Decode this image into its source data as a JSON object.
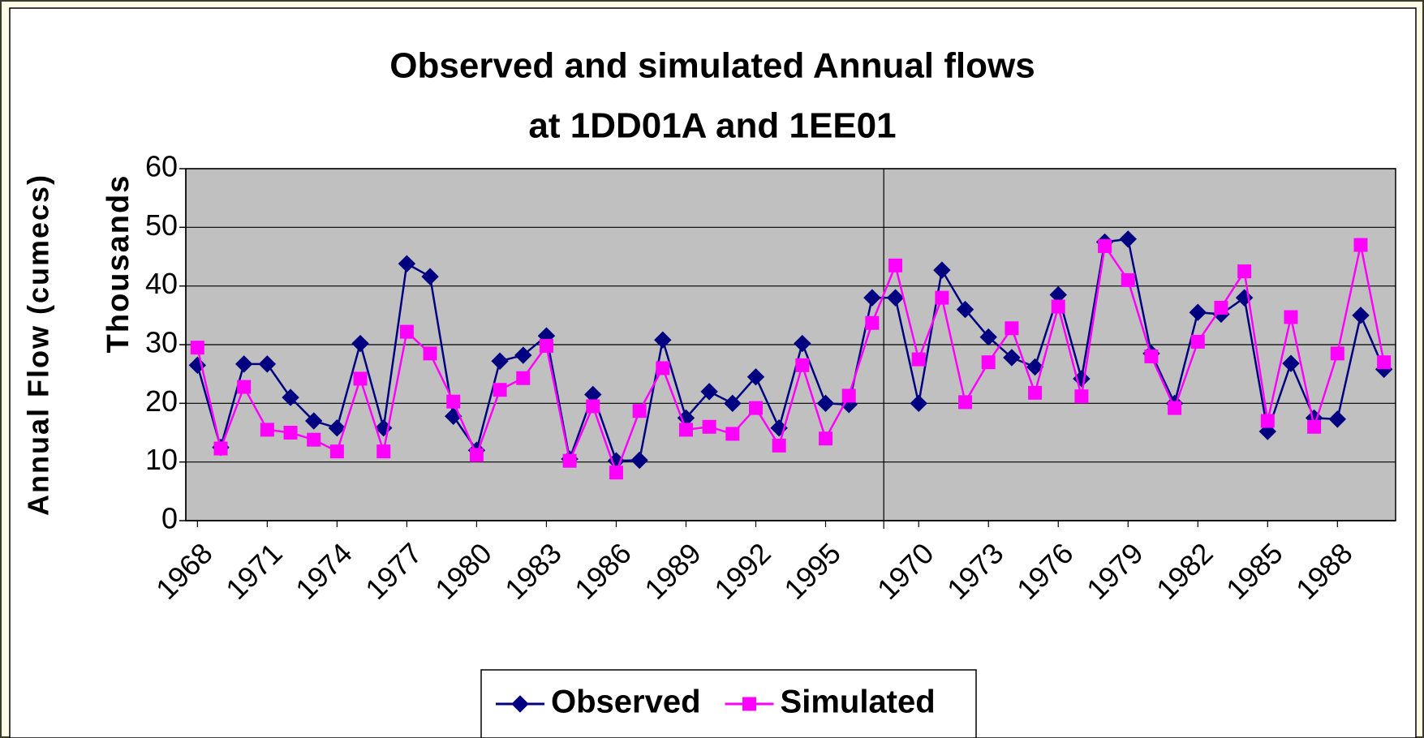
{
  "chart_data": {
    "type": "line",
    "title": [
      "Observed and simulated Annual flows",
      "at 1DD01A and 1EE01"
    ],
    "y_label": "Annual Flow (cumecs)",
    "y_unit_label": "Thousands",
    "categories": [
      "1968",
      null,
      null,
      "1971",
      null,
      null,
      "1974",
      null,
      null,
      "1977",
      null,
      null,
      "1980",
      null,
      null,
      "1983",
      null,
      null,
      "1986",
      null,
      null,
      "1989",
      null,
      null,
      "1992",
      null,
      null,
      "1995",
      null,
      null,
      null,
      "1970",
      null,
      null,
      "1973",
      null,
      null,
      "1976",
      null,
      null,
      "1979",
      null,
      null,
      "1982",
      null,
      null,
      "1985",
      null,
      null,
      "1988",
      null,
      null
    ],
    "series": [
      {
        "name": "Observed",
        "color": "#000080",
        "marker": "diamond",
        "values": [
          26.5,
          12.5,
          26.7,
          26.7,
          21,
          17,
          15.8,
          30.2,
          15.8,
          43.8,
          41.6,
          17.8,
          12,
          27.2,
          28.2,
          31.5,
          10.5,
          21.5,
          10.2,
          10.3,
          30.8,
          17.5,
          22,
          20,
          24.5,
          15.8,
          30.2,
          20,
          19.8,
          38,
          38,
          20,
          42.7,
          36,
          31.3,
          27.8,
          26.2,
          38.5,
          24.2,
          47.5,
          48,
          28.5,
          20,
          35.5,
          35.2,
          38,
          15.2,
          26.8,
          17.5,
          17.3,
          35,
          25.8
        ]
      },
      {
        "name": "Simulated",
        "color": "#ff00ff",
        "marker": "square",
        "values": [
          29.5,
          12.3,
          22.8,
          15.5,
          15,
          13.8,
          11.8,
          24.2,
          11.8,
          32.2,
          28.5,
          20.3,
          11.2,
          22.3,
          24.3,
          29.8,
          10.2,
          19.5,
          8.2,
          18.7,
          26,
          15.5,
          16,
          14.8,
          19.2,
          12.8,
          26.5,
          14,
          21.3,
          33.7,
          43.5,
          27.5,
          38,
          20.2,
          27,
          32.8,
          21.8,
          36.5,
          21.2,
          46.8,
          41,
          28,
          19.2,
          30.5,
          36.3,
          42.5,
          17,
          34.7,
          16,
          28.5,
          47,
          27
        ]
      }
    ],
    "ylim": [
      0,
      60
    ],
    "yticks": [
      0,
      10,
      20,
      30,
      40,
      50,
      60
    ],
    "grid": true,
    "legend": "bottom",
    "plot_background": "#c0c0c0"
  }
}
